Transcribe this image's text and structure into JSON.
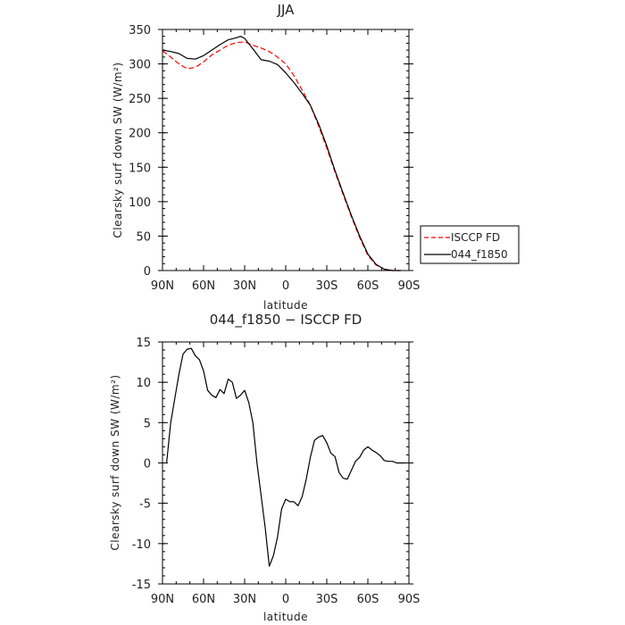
{
  "chart_data": [
    {
      "type": "line",
      "title": "JJA",
      "xlabel": "latitude",
      "ylabel": "Clearsky surf down SW (W/m²)",
      "xticks": [
        "90N",
        "60N",
        "30N",
        "0",
        "30S",
        "60S",
        "90S"
      ],
      "xlim": [
        90,
        -90
      ],
      "ylim": [
        0,
        350
      ],
      "yticks": [
        0,
        50,
        100,
        150,
        200,
        250,
        300,
        350
      ],
      "grid": false,
      "legend_position": "right",
      "series": [
        {
          "name": "ISCCP FD",
          "color": "#ff0000",
          "dash": true,
          "x": [
            90,
            84,
            78,
            72,
            66,
            60,
            54,
            48,
            42,
            36,
            30,
            24,
            18,
            12,
            6,
            0,
            -6,
            -12,
            -18,
            -24,
            -30,
            -36,
            -42,
            -48,
            -54,
            -60,
            -66,
            -72,
            -78,
            -84
          ],
          "y": [
            319,
            310,
            300,
            293,
            295,
            303,
            313,
            320,
            327,
            331,
            332,
            327,
            323,
            318,
            310,
            300,
            283,
            262,
            240,
            210,
            178,
            143,
            110,
            78,
            48,
            22,
            8,
            2,
            0,
            0
          ]
        },
        {
          "name": "044_f1850",
          "color": "#000000",
          "dash": false,
          "x": [
            90,
            84,
            78,
            72,
            66,
            60,
            54,
            48,
            42,
            36,
            33,
            30,
            24,
            18,
            12,
            6,
            0,
            -6,
            -12,
            -18,
            -24,
            -30,
            -36,
            -42,
            -48,
            -54,
            -60,
            -66,
            -72,
            -78,
            -84
          ],
          "y": [
            320,
            318,
            315,
            308,
            307,
            312,
            320,
            328,
            335,
            338,
            340,
            337,
            322,
            306,
            304,
            299,
            287,
            273,
            257,
            240,
            213,
            181,
            145,
            112,
            80,
            50,
            24,
            9,
            2,
            0,
            0
          ]
        }
      ]
    },
    {
      "type": "line",
      "title": "044_f1850 − ISCCP FD",
      "xlabel": "latitude",
      "ylabel": "Clearsky surf down SW (W/m²)",
      "xticks": [
        "90N",
        "60N",
        "30N",
        "0",
        "30S",
        "60S",
        "90S"
      ],
      "xlim": [
        90,
        -90
      ],
      "ylim": [
        -15,
        15
      ],
      "yticks": [
        -15,
        -10,
        -5,
        0,
        5,
        10,
        15
      ],
      "grid": false,
      "series": [
        {
          "color": "#000000",
          "x": [
            87,
            84,
            81,
            78,
            75,
            72,
            69,
            66,
            63,
            60,
            57,
            54,
            51,
            48,
            45,
            42,
            39,
            36,
            33,
            30,
            27,
            24,
            21,
            18,
            15,
            12,
            9,
            6,
            3,
            0,
            -3,
            -6,
            -9,
            -12,
            -15,
            -18,
            -21,
            -24,
            -27,
            -30,
            -33,
            -36,
            -39,
            -42,
            -45,
            -48,
            -51,
            -54,
            -57,
            -60,
            -63,
            -66,
            -69,
            -72,
            -75,
            -78,
            -81,
            -84,
            -87
          ],
          "y": [
            0,
            5,
            8,
            11,
            13.5,
            14.1,
            14.2,
            13.3,
            12.8,
            11.4,
            9.0,
            8.4,
            8.1,
            9.1,
            8.6,
            10.4,
            10.0,
            8.0,
            8.4,
            9.0,
            7.5,
            5.0,
            0.0,
            -4.0,
            -8.0,
            -12.8,
            -11.5,
            -9.2,
            -5.7,
            -4.5,
            -4.8,
            -4.8,
            -5.3,
            -4.2,
            -2.0,
            0.7,
            2.8,
            3.2,
            3.4,
            2.5,
            1.2,
            0.8,
            -1.2,
            -1.9,
            -2.0,
            -0.9,
            0.2,
            0.7,
            1.6,
            2.0,
            1.6,
            1.3,
            0.9,
            0.3,
            0.2,
            0.2,
            0.0,
            0.0,
            0.0
          ]
        }
      ]
    }
  ]
}
